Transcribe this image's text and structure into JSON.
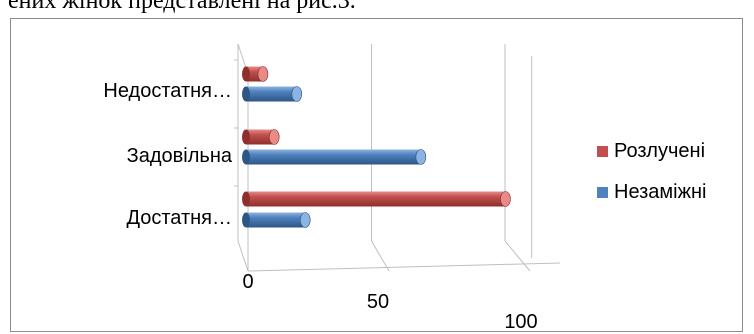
{
  "document": {
    "partial_text": "ених жінок представлені на рис.3."
  },
  "colors": {
    "rozlucheni": "#c0504d",
    "rozlucheni_light": "#e88a87",
    "rozlucheni_dark": "#8f2f2c",
    "nezamizhni": "#4f81bd",
    "nezamizhni_light": "#8db3e2",
    "nezamizhni_dark": "#2c5686",
    "gridline": "#bfbfbf"
  },
  "chart_data": {
    "type": "bar",
    "orientation": "horizontal",
    "style": "3d-cylinder",
    "categories": [
      "Недостатня…",
      "Задовільна",
      "Достатня…"
    ],
    "series": [
      {
        "name": "Розлучені",
        "values": [
          6,
          10,
          92
        ]
      },
      {
        "name": "Незаміжні",
        "values": [
          18,
          62,
          21
        ]
      }
    ],
    "xlim": [
      0,
      100
    ],
    "x_ticks": [
      0,
      50,
      100
    ],
    "x_tick_labels": [
      "0",
      "50",
      "100"
    ],
    "grid": true,
    "legend_position": "right",
    "title": "",
    "xlabel": "",
    "ylabel": ""
  }
}
